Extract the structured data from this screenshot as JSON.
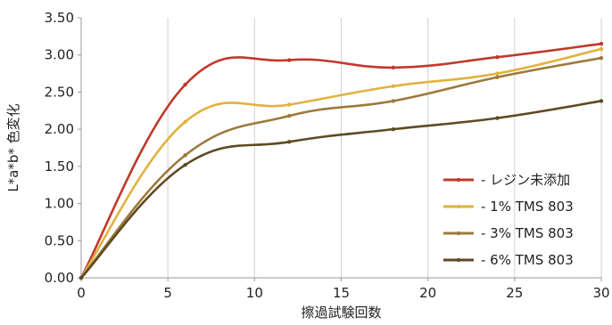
{
  "chart_data": {
    "type": "line",
    "xlabel": "擦過試験回数",
    "ylabel": "L*a*b* 色変化",
    "xlim": [
      0,
      30
    ],
    "ylim": [
      0,
      3.5
    ],
    "x_ticks": [
      0,
      5,
      10,
      15,
      20,
      25,
      30
    ],
    "y_ticks": [
      "0.00",
      "0.50",
      "1.00",
      "1.50",
      "2.00",
      "2.50",
      "3.00",
      "3.50"
    ],
    "grid": "vertical",
    "legend_position": "bottom-right",
    "x": [
      0,
      6,
      12,
      18,
      24,
      30
    ],
    "series": [
      {
        "name": "- レジン未添加",
        "color": "#c0392b",
        "values": [
          0.0,
          2.6,
          2.93,
          2.83,
          2.97,
          3.15
        ]
      },
      {
        "name": "- 1% TMS 803",
        "color": "#e1b23f",
        "values": [
          0.0,
          2.1,
          2.33,
          2.58,
          2.75,
          3.08
        ]
      },
      {
        "name": "- 3% TMS 803",
        "color": "#9c7a3c",
        "values": [
          0.0,
          1.65,
          2.18,
          2.38,
          2.7,
          2.96
        ]
      },
      {
        "name": "- 6% TMS 803",
        "color": "#5e4a23",
        "values": [
          0.0,
          1.52,
          1.83,
          2.0,
          2.15,
          2.38
        ]
      }
    ]
  }
}
